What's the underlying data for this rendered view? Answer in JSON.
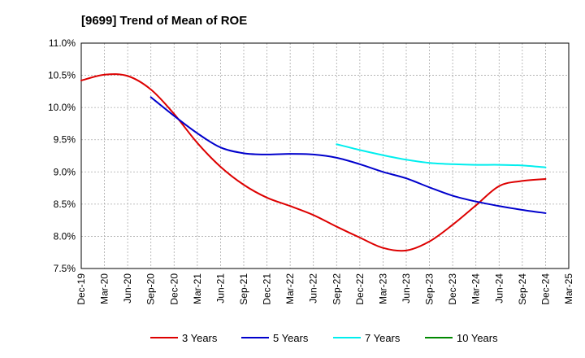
{
  "chart_data": {
    "type": "line",
    "title": "[9699]  Trend of Mean of ROE",
    "xlabel": "",
    "ylabel": "",
    "ylim": [
      7.5,
      11.0
    ],
    "grid": true,
    "legend_position": "bottom",
    "x_ticks": [
      "Dec-19",
      "Mar-20",
      "Jun-20",
      "Sep-20",
      "Dec-20",
      "Mar-21",
      "Jun-21",
      "Sep-21",
      "Dec-21",
      "Mar-22",
      "Jun-22",
      "Sep-22",
      "Dec-22",
      "Mar-23",
      "Jun-23",
      "Sep-23",
      "Dec-23",
      "Mar-24",
      "Jun-24",
      "Sep-24",
      "Dec-24",
      "Mar-25"
    ],
    "y_ticks": [
      7.5,
      8.0,
      8.5,
      9.0,
      9.5,
      10.0,
      10.5,
      11.0
    ],
    "y_tick_labels": [
      "7.5%",
      "8.0%",
      "8.5%",
      "9.0%",
      "9.5%",
      "10.0%",
      "10.5%",
      "11.0%"
    ],
    "series": [
      {
        "name": "3 Years",
        "color": "#dd0000",
        "values": [
          10.42,
          10.51,
          10.49,
          10.28,
          9.9,
          9.45,
          9.08,
          8.8,
          8.6,
          8.47,
          8.33,
          8.15,
          7.98,
          7.82,
          7.78,
          7.92,
          8.18,
          8.48,
          8.78,
          8.86,
          8.89,
          null
        ]
      },
      {
        "name": "5 Years",
        "color": "#0000cc",
        "values": [
          null,
          null,
          null,
          10.16,
          9.87,
          9.6,
          9.38,
          9.29,
          9.27,
          9.28,
          9.27,
          9.22,
          9.12,
          9.0,
          8.9,
          8.76,
          8.63,
          8.54,
          8.47,
          8.41,
          8.36,
          null
        ]
      },
      {
        "name": "7 Years",
        "color": "#00eeee",
        "values": [
          null,
          null,
          null,
          null,
          null,
          null,
          null,
          null,
          null,
          null,
          null,
          9.43,
          9.34,
          9.26,
          9.19,
          9.14,
          9.12,
          9.11,
          9.11,
          9.1,
          9.07,
          null
        ]
      },
      {
        "name": "10 Years",
        "color": "#008800",
        "values": [
          null,
          null,
          null,
          null,
          null,
          null,
          null,
          null,
          null,
          null,
          null,
          null,
          null,
          null,
          null,
          null,
          null,
          null,
          null,
          null,
          null,
          null
        ]
      }
    ]
  }
}
